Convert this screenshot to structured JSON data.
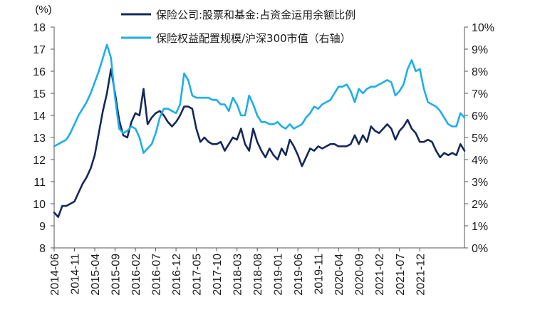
{
  "chart_data": {
    "type": "line",
    "left_axis_unit": "(%)",
    "x_tick_labels": [
      "2014-06",
      "2014-11",
      "2015-04",
      "2015-09",
      "2016-02",
      "2016-07",
      "2016-12",
      "2017-05",
      "2017-10",
      "2018-03",
      "2018-08",
      "2019-01",
      "2019-06",
      "2019-11",
      "2020-04",
      "2020-09",
      "2021-02",
      "2021-07",
      "2021-12"
    ],
    "y_left": {
      "min": 8,
      "max": 18,
      "step": 1,
      "ticks": [
        "8",
        "9",
        "10",
        "11",
        "12",
        "13",
        "14",
        "15",
        "16",
        "17",
        "18"
      ]
    },
    "y_right": {
      "min": 0,
      "max": 10,
      "step": 1,
      "ticks": [
        "0%",
        "1%",
        "2%",
        "3%",
        "4%",
        "5%",
        "6%",
        "7%",
        "8%",
        "9%",
        "10%"
      ]
    },
    "legend_position": "top-center",
    "grid": false,
    "series": [
      {
        "name": "保险公司:股票和基金:占资金运用余额比例",
        "axis": "left",
        "color": "#14285a",
        "values": [
          9.6,
          9.4,
          9.9,
          9.9,
          10.0,
          10.1,
          10.5,
          10.9,
          11.2,
          11.6,
          12.2,
          13.2,
          14.2,
          15.0,
          16.1,
          15.0,
          13.8,
          13.1,
          13.0,
          13.7,
          14.1,
          14.0,
          15.2,
          13.6,
          13.9,
          14.1,
          14.2,
          14.0,
          13.7,
          13.5,
          13.7,
          14.0,
          14.4,
          14.4,
          14.3,
          13.4,
          12.8,
          13.0,
          12.8,
          12.7,
          12.7,
          12.8,
          12.4,
          12.7,
          13.0,
          12.9,
          13.4,
          12.7,
          12.4,
          13.4,
          12.8,
          12.4,
          12.1,
          12.5,
          12.2,
          12.0,
          12.5,
          12.2,
          12.9,
          12.6,
          12.2,
          11.7,
          12.1,
          12.5,
          12.4,
          12.6,
          12.5,
          12.6,
          12.7,
          12.7,
          12.6,
          12.6,
          12.6,
          12.7,
          13.1,
          12.7,
          13.1,
          12.8,
          13.5,
          13.3,
          13.2,
          13.4,
          13.6,
          13.4,
          12.9,
          13.3,
          13.5,
          13.8,
          13.4,
          13.2,
          12.8,
          12.8,
          12.9,
          12.8,
          12.4,
          12.1,
          12.3,
          12.2,
          12.3,
          12.2,
          12.7,
          12.4
        ]
      },
      {
        "name": "保险权益配置规模/沪深300市值（右轴）",
        "axis": "right",
        "color": "#1eaee8",
        "values": [
          4.6,
          4.7,
          4.8,
          4.9,
          5.2,
          5.6,
          6.0,
          6.3,
          6.6,
          7.0,
          7.5,
          8.0,
          8.6,
          9.2,
          8.6,
          6.8,
          5.4,
          5.2,
          5.3,
          5.5,
          5.4,
          5.0,
          4.3,
          4.5,
          4.7,
          5.2,
          5.9,
          6.3,
          6.3,
          6.2,
          6.1,
          6.5,
          7.9,
          7.6,
          6.9,
          6.8,
          6.8,
          6.8,
          6.8,
          6.7,
          6.7,
          6.5,
          6.5,
          6.2,
          6.8,
          6.5,
          6.0,
          6.0,
          6.9,
          6.5,
          6.0,
          5.7,
          5.7,
          5.6,
          5.6,
          5.7,
          5.5,
          5.4,
          5.6,
          5.4,
          5.5,
          5.6,
          5.9,
          6.1,
          6.4,
          6.3,
          6.5,
          6.6,
          6.7,
          7.0,
          7.3,
          7.3,
          7.4,
          7.1,
          6.6,
          7.2,
          7.0,
          7.2,
          7.3,
          7.3,
          7.4,
          7.5,
          7.6,
          7.5,
          6.9,
          7.1,
          7.4,
          8.1,
          8.5,
          8.0,
          8.1,
          7.2,
          6.6,
          6.5,
          6.4,
          6.2,
          5.9,
          5.6,
          5.5,
          5.5,
          6.1,
          5.9
        ]
      }
    ]
  }
}
